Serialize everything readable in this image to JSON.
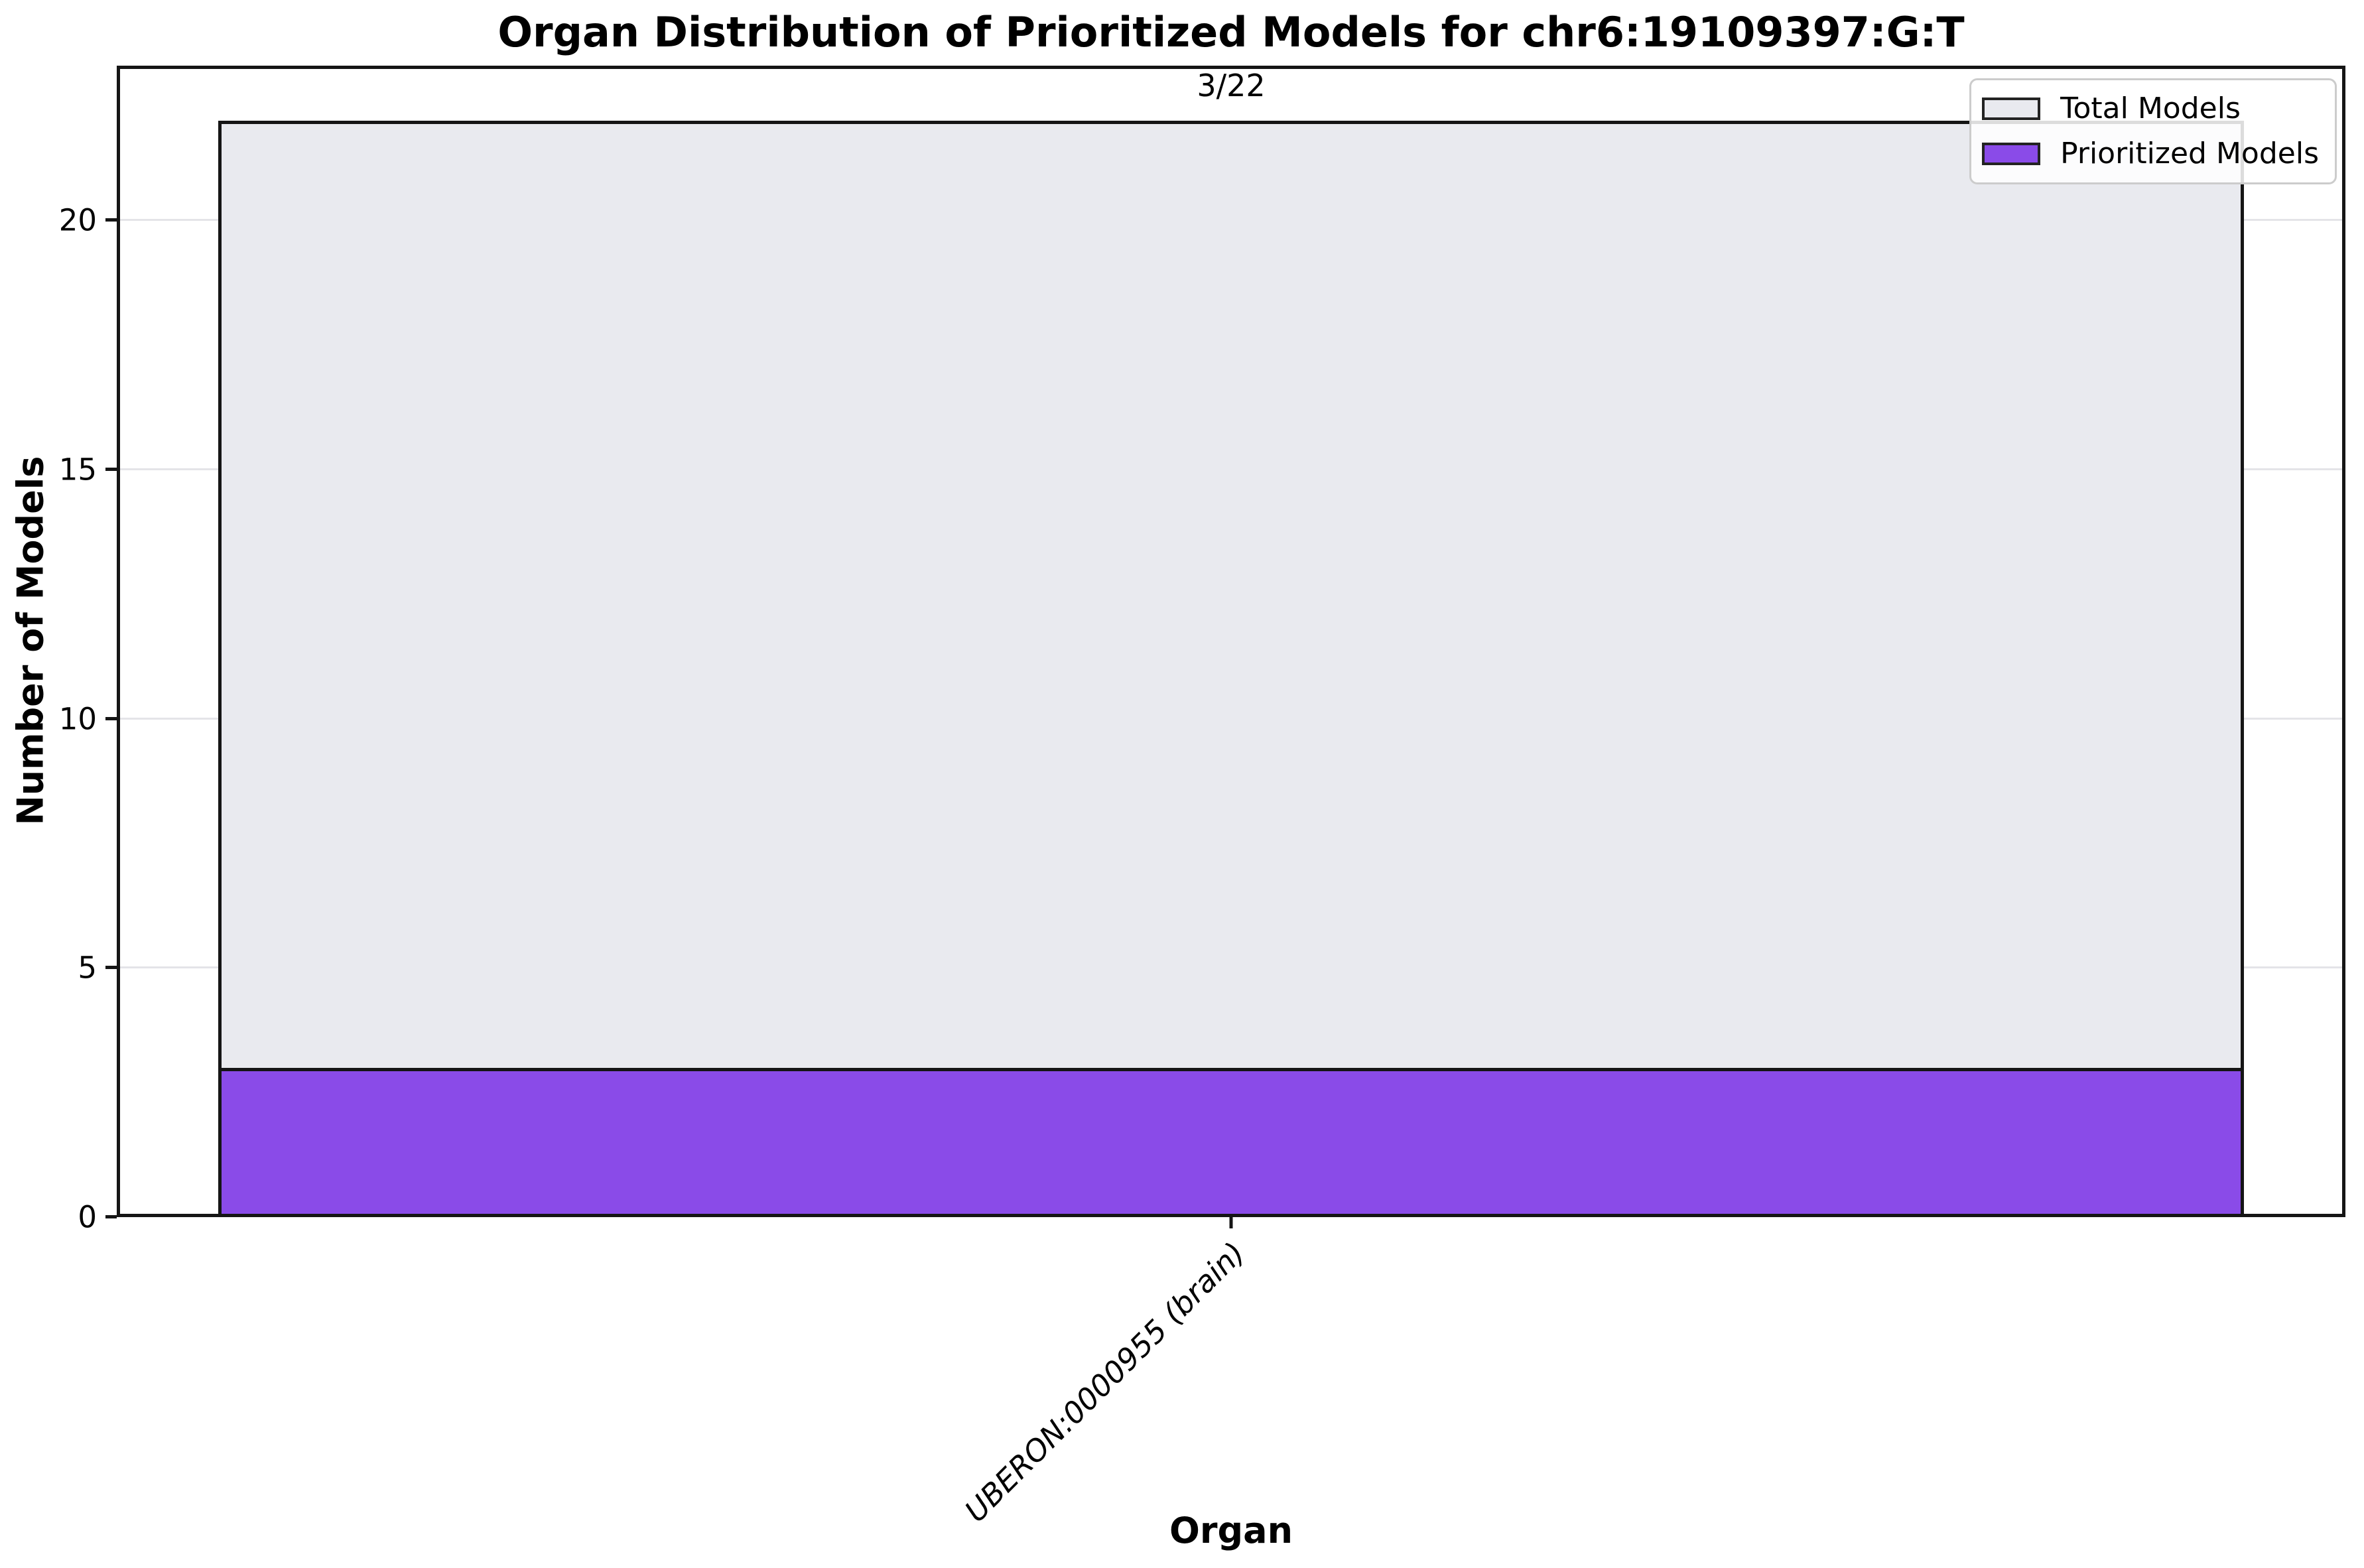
{
  "chart_data": {
    "type": "bar",
    "title": "Organ Distribution of Prioritized Models for chr6:19109397:G:T",
    "xlabel": "Organ",
    "ylabel": "Number of Models",
    "categories": [
      "UBERON:0000955 (brain)"
    ],
    "series": [
      {
        "name": "Total Models",
        "values": [
          22
        ],
        "color": "#e9eaef",
        "edgecolor": "#151515"
      },
      {
        "name": "Prioritized Models",
        "values": [
          3
        ],
        "color": "#8a4be8",
        "edgecolor": "#151515"
      }
    ],
    "bar_labels": [
      "3/22"
    ],
    "mode": "overlay",
    "ylim": [
      0,
      23.1
    ],
    "yticks": [
      0,
      5,
      10,
      15,
      20
    ],
    "grid": "horizontal",
    "grid_color": "#e4e4e8",
    "legend_position": "upper-right",
    "background": "#ffffff"
  }
}
